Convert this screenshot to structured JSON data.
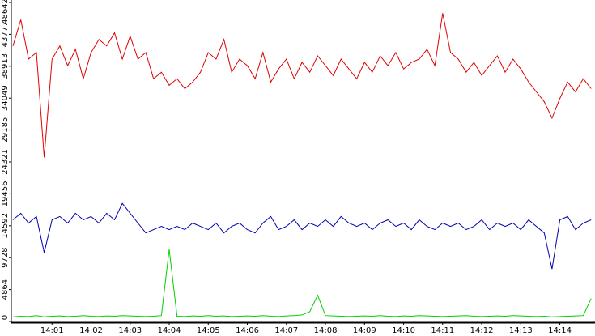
{
  "chart_data": {
    "type": "line",
    "x": [
      0,
      0.2,
      0.4,
      0.6,
      0.8,
      1,
      1.2,
      1.4,
      1.6,
      1.8,
      2,
      2.2,
      2.4,
      2.6,
      2.8,
      3,
      3.2,
      3.4,
      3.6,
      3.8,
      4,
      4.2,
      4.4,
      4.6,
      4.8,
      5,
      5.2,
      5.4,
      5.6,
      5.8,
      6,
      6.2,
      6.4,
      6.6,
      6.8,
      7,
      7.2,
      7.4,
      7.6,
      7.8,
      8,
      8.2,
      8.4,
      8.6,
      8.8,
      9,
      9.2,
      9.4,
      9.6,
      9.8,
      10,
      10.2,
      10.4,
      10.6,
      10.8,
      11,
      11.2,
      11.4,
      11.6,
      11.8,
      12,
      12.2,
      12.4,
      12.6,
      12.8,
      13,
      13.2,
      13.4,
      13.6,
      13.8,
      14,
      14.2,
      14.4,
      14.6,
      14.8
    ],
    "series": [
      {
        "color": "#e00000",
        "values": [
          42000,
          46000,
          40000,
          41000,
          25000,
          40000,
          42000,
          39000,
          41500,
          37000,
          41000,
          43000,
          42000,
          44000,
          40000,
          43500,
          40000,
          41000,
          37000,
          38000,
          36000,
          37000,
          35500,
          36500,
          38000,
          41000,
          40000,
          43000,
          38000,
          40000,
          39000,
          37000,
          41000,
          36500,
          38500,
          40000,
          37000,
          39500,
          38000,
          40500,
          39000,
          37500,
          40000,
          38500,
          37000,
          39500,
          38000,
          40500,
          39000,
          41000,
          38500,
          39500,
          40000,
          41500,
          39000,
          47000,
          41000,
          40000,
          38000,
          39500,
          37500,
          39000,
          40500,
          38000,
          40000,
          38500,
          36500,
          35000,
          33500,
          31000,
          34000,
          36500,
          35000,
          37000,
          35500
        ]
      },
      {
        "color": "#0000b0",
        "values": [
          15500,
          16500,
          15000,
          16000,
          10500,
          15500,
          16000,
          15000,
          16500,
          15500,
          16000,
          15000,
          16500,
          15500,
          18000,
          16500,
          15000,
          13500,
          14000,
          14500,
          14000,
          14500,
          14000,
          15000,
          14500,
          14000,
          15000,
          13500,
          14500,
          15000,
          14000,
          13500,
          15000,
          16000,
          14000,
          14500,
          15500,
          14000,
          15000,
          14500,
          15500,
          14500,
          16000,
          15000,
          14500,
          15000,
          14000,
          15000,
          15500,
          14500,
          15000,
          14000,
          15500,
          14500,
          14000,
          15000,
          14500,
          15000,
          14000,
          14500,
          15500,
          14000,
          15000,
          14500,
          15000,
          14000,
          15500,
          14500,
          13500,
          8000,
          15500,
          16000,
          14000,
          15000,
          15500
        ]
      },
      {
        "color": "#00d000",
        "values": [
          700,
          800,
          750,
          900,
          700,
          800,
          850,
          750,
          800,
          900,
          800,
          750,
          850,
          800,
          900,
          850,
          800,
          750,
          800,
          900,
          11000,
          800,
          750,
          850,
          800,
          900,
          800,
          850,
          750,
          800,
          850,
          800,
          900,
          800,
          750,
          850,
          900,
          1000,
          1500,
          4000,
          900,
          850,
          800,
          750,
          800,
          850,
          800,
          900,
          800,
          750,
          850,
          800,
          900,
          850,
          800,
          750,
          800,
          850,
          900,
          800,
          750,
          800,
          850,
          800,
          900,
          850,
          800,
          750,
          800,
          700,
          750,
          800,
          850,
          900,
          3500
        ]
      }
    ],
    "ylim": [
      0,
      48642
    ],
    "yticks": [
      0,
      4864,
      9728,
      14592,
      19456,
      24321,
      29185,
      34049,
      38913,
      43777,
      48642
    ],
    "xlim": [
      0,
      14.9
    ],
    "xticks": [
      {
        "value": 1,
        "label": "14:01"
      },
      {
        "value": 2,
        "label": "14:02"
      },
      {
        "value": 3,
        "label": "14:03"
      },
      {
        "value": 4,
        "label": "14:04"
      },
      {
        "value": 5,
        "label": "14:05"
      },
      {
        "value": 6,
        "label": "14:06"
      },
      {
        "value": 7,
        "label": "14:07"
      },
      {
        "value": 8,
        "label": "14:08"
      },
      {
        "value": 9,
        "label": "14:09"
      },
      {
        "value": 10,
        "label": "14:10"
      },
      {
        "value": 11,
        "label": "14:11"
      },
      {
        "value": 12,
        "label": "14:12"
      },
      {
        "value": 13,
        "label": "14:13"
      },
      {
        "value": 14,
        "label": "14:14"
      }
    ],
    "grid": false
  }
}
